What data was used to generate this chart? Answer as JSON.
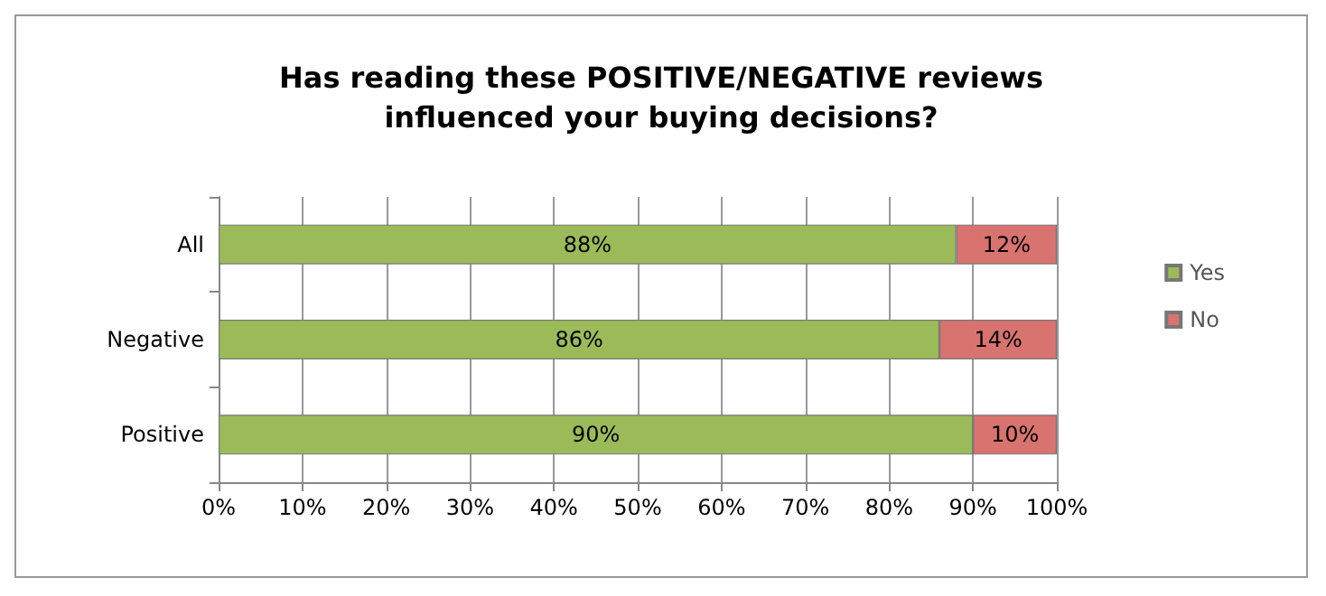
{
  "chart_data": {
    "type": "bar",
    "orientation": "horizontal",
    "stacked": true,
    "title": "Has reading these POSITIVE/NEGATIVE reviews\ninfluenced your buying decisions?",
    "categories": [
      "All",
      "Negative",
      "Positive"
    ],
    "series": [
      {
        "name": "Yes",
        "color": "#9bbb59",
        "values": [
          88,
          86,
          90
        ],
        "value_labels": [
          "88%",
          "86%",
          "90%"
        ]
      },
      {
        "name": "No",
        "color": "#d9736f",
        "values": [
          12,
          14,
          10
        ],
        "value_labels": [
          "12%",
          "14%",
          "10%"
        ]
      }
    ],
    "xlim": [
      0,
      100
    ],
    "xticks": [
      {
        "value": 0,
        "label": "0%"
      },
      {
        "value": 10,
        "label": "10%"
      },
      {
        "value": 20,
        "label": "20%"
      },
      {
        "value": 30,
        "label": "30%"
      },
      {
        "value": 40,
        "label": "40%"
      },
      {
        "value": 50,
        "label": "50%"
      },
      {
        "value": 60,
        "label": "60%"
      },
      {
        "value": 70,
        "label": "70%"
      },
      {
        "value": 80,
        "label": "80%"
      },
      {
        "value": 90,
        "label": "90%"
      },
      {
        "value": 100,
        "label": "100%"
      }
    ],
    "grid": "x",
    "legend": "right"
  }
}
